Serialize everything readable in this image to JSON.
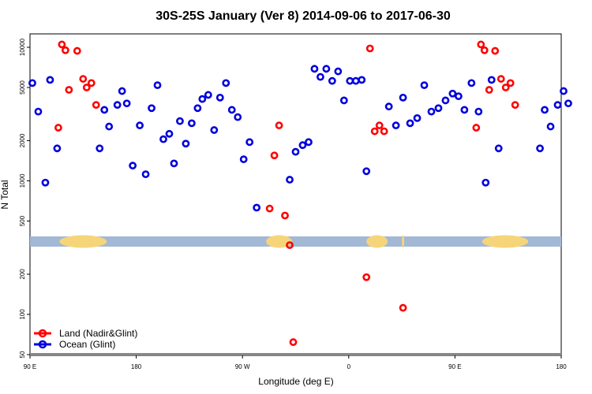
{
  "chart_data": {
    "type": "scatter",
    "title": "30S-25S January (Ver 8)   2014-09-06 to 2017-06-30",
    "xlabel": "Longitude (deg E)",
    "ylabel": "N Total",
    "y_scale": "log",
    "ylim": [
      50,
      13000
    ],
    "x_ticks": [
      {
        "x": 90,
        "label": "90 E"
      },
      {
        "x": 180,
        "label": "180"
      },
      {
        "x": 270,
        "label": "90 W"
      },
      {
        "x": 360,
        "label": "0"
      },
      {
        "x": 450,
        "label": "90 E"
      },
      {
        "x": 540,
        "label": "180"
      }
    ],
    "xlim": [
      90,
      540
    ],
    "y_ticks": [
      50,
      100,
      200,
      500,
      1000,
      2000,
      5000,
      10000
    ],
    "grid": false,
    "legend_position": "bottom-left",
    "map_strip": {
      "ocean_color": "#a3b8d4",
      "land_color": "#f6d57a",
      "land_segments": [
        [
          115,
          155
        ],
        [
          290,
          312
        ],
        [
          375,
          393
        ],
        [
          405,
          407
        ],
        [
          473,
          512
        ]
      ]
    },
    "series": [
      {
        "name": "Land (Nadir&Glint)",
        "color": "#ff0000",
        "points": [
          [
            114,
            2500
          ],
          [
            117,
            10500
          ],
          [
            120,
            9500
          ],
          [
            123,
            4800
          ],
          [
            130,
            9400
          ],
          [
            135,
            5800
          ],
          [
            138,
            5000
          ],
          [
            142,
            5400
          ],
          [
            146,
            3700
          ],
          [
            293,
            620
          ],
          [
            297,
            1550
          ],
          [
            301,
            2600
          ],
          [
            306,
            550
          ],
          [
            310,
            330
          ],
          [
            313,
            62
          ],
          [
            375,
            190
          ],
          [
            378,
            9800
          ],
          [
            382,
            2350
          ],
          [
            386,
            2600
          ],
          [
            390,
            2350
          ],
          [
            406,
            112
          ],
          [
            468,
            2500
          ],
          [
            472,
            10500
          ],
          [
            475,
            9500
          ],
          [
            479,
            4800
          ],
          [
            484,
            9400
          ],
          [
            489,
            5800
          ],
          [
            493,
            5000
          ],
          [
            497,
            5400
          ],
          [
            501,
            3700
          ]
        ]
      },
      {
        "name": "Ocean (Glint)",
        "color": "#0000dd",
        "points": [
          [
            92,
            5400
          ],
          [
            97,
            3300
          ],
          [
            103,
            970
          ],
          [
            107,
            5700
          ],
          [
            113,
            1750
          ],
          [
            149,
            1750
          ],
          [
            153,
            3400
          ],
          [
            157,
            2550
          ],
          [
            164,
            3700
          ],
          [
            168,
            4700
          ],
          [
            172,
            3800
          ],
          [
            177,
            1300
          ],
          [
            183,
            2600
          ],
          [
            188,
            1120
          ],
          [
            193,
            3500
          ],
          [
            198,
            5200
          ],
          [
            203,
            2050
          ],
          [
            208,
            2250
          ],
          [
            212,
            1350
          ],
          [
            217,
            2800
          ],
          [
            222,
            1900
          ],
          [
            227,
            2700
          ],
          [
            232,
            3500
          ],
          [
            236,
            4100
          ],
          [
            241,
            4400
          ],
          [
            246,
            2400
          ],
          [
            251,
            4200
          ],
          [
            256,
            5400
          ],
          [
            261,
            3400
          ],
          [
            266,
            3000
          ],
          [
            271,
            1450
          ],
          [
            276,
            1950
          ],
          [
            282,
            630
          ],
          [
            310,
            1020
          ],
          [
            315,
            1650
          ],
          [
            321,
            1850
          ],
          [
            326,
            1950
          ],
          [
            331,
            6900
          ],
          [
            336,
            6000
          ],
          [
            341,
            6900
          ],
          [
            346,
            5600
          ],
          [
            351,
            6600
          ],
          [
            356,
            4000
          ],
          [
            361,
            5600
          ],
          [
            366,
            5600
          ],
          [
            371,
            5700
          ],
          [
            375,
            1180
          ],
          [
            394,
            3600
          ],
          [
            400,
            2600
          ],
          [
            406,
            4200
          ],
          [
            412,
            2700
          ],
          [
            418,
            2950
          ],
          [
            424,
            5200
          ],
          [
            430,
            3300
          ],
          [
            436,
            3500
          ],
          [
            442,
            4000
          ],
          [
            448,
            4500
          ],
          [
            453,
            4300
          ],
          [
            458,
            3400
          ],
          [
            464,
            5400
          ],
          [
            470,
            3300
          ],
          [
            476,
            970
          ],
          [
            481,
            5700
          ],
          [
            487,
            1750
          ],
          [
            522,
            1750
          ],
          [
            526,
            3400
          ],
          [
            531,
            2550
          ],
          [
            537,
            3700
          ],
          [
            542,
            4700
          ],
          [
            546,
            3800
          ]
        ]
      }
    ]
  }
}
